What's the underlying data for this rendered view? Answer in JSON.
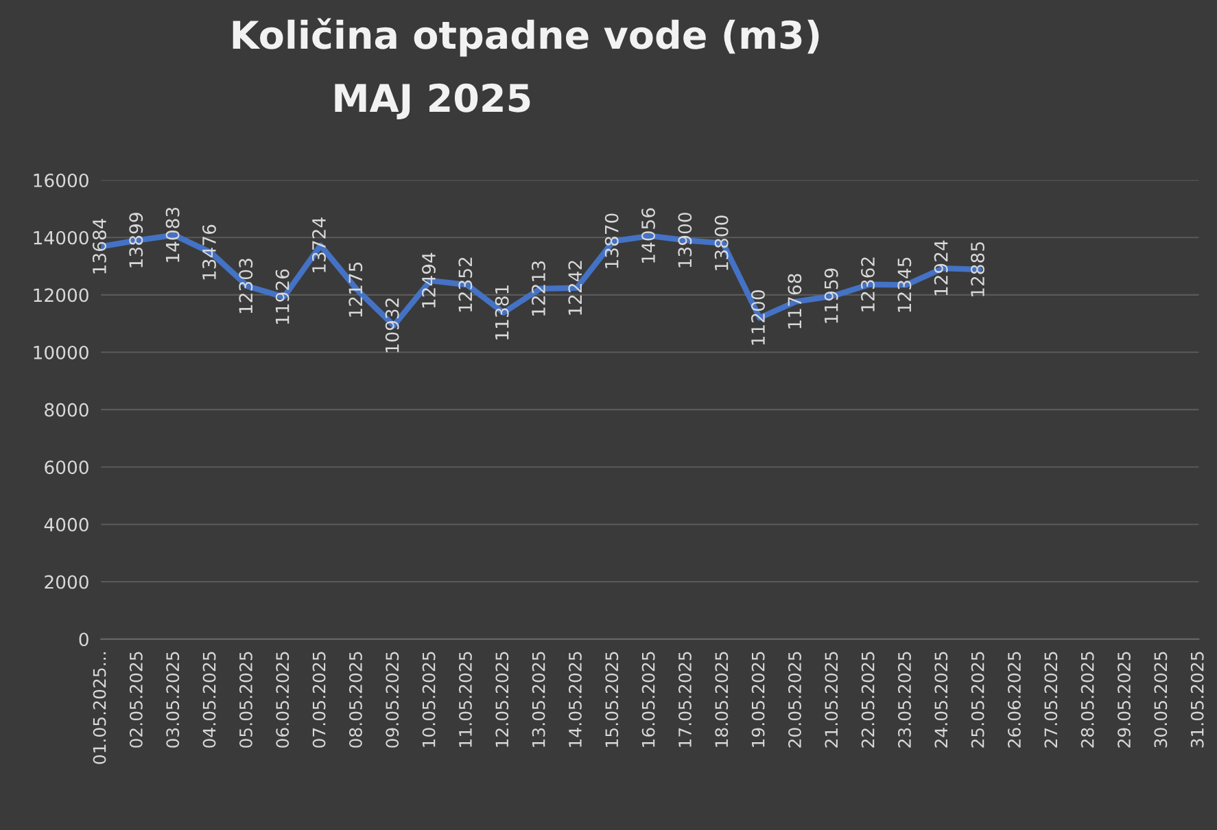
{
  "chart_data": {
    "type": "line",
    "title": "Količina otpadne vode (m3)",
    "subtitle": "MAJ 2025",
    "categories": [
      "01.05.2025...",
      "02.05.2025",
      "03.05.2025",
      "04.05.2025",
      "05.05.2025",
      "06.05.2025",
      "07.05.2025",
      "08.05.2025",
      "09.05.2025",
      "10.05.2025",
      "11.05.2025",
      "12.05.2025",
      "13.05.2025",
      "14.05.2025",
      "15.05.2025",
      "16.05.2025",
      "17.05.2025",
      "18.05.2025",
      "19.05.2025",
      "20.05.2025",
      "21.05.2025",
      "22.05.2025",
      "23.05.2025",
      "24.05.2025",
      "25.05.2025",
      "26.06.2025",
      "27.05.2025",
      "28.05.2025",
      "29.05.2025",
      "30.05.2025",
      "31.05.2025"
    ],
    "series": [
      {
        "color": "#4472c4",
        "values": [
          13684,
          13899,
          14083,
          13476,
          12303,
          11926,
          13724,
          12175,
          10932,
          12494,
          12352,
          11381,
          12213,
          12242,
          13870,
          14056,
          13900,
          13800,
          11200,
          11768,
          11959,
          12362,
          12345,
          12924,
          12885,
          null,
          null,
          null,
          null,
          null,
          null
        ]
      }
    ],
    "ylim": [
      0,
      16000
    ],
    "yticks": [
      0,
      2000,
      4000,
      6000,
      8000,
      10000,
      12000,
      14000,
      16000
    ],
    "grid": "y",
    "data_labels": true,
    "marker": "none",
    "line_style": "solid"
  }
}
